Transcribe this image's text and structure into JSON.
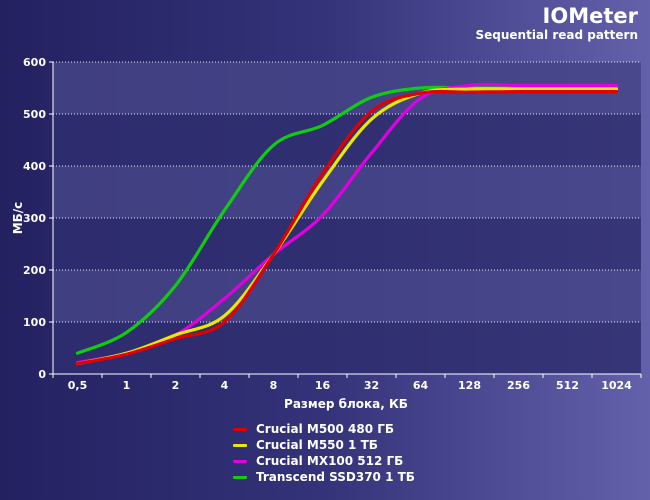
{
  "chart_data": {
    "type": "line",
    "title": "IOMeter",
    "subtitle": "Sequential read pattern",
    "xlabel": "Размер блока, КБ",
    "ylabel": "МБ/с",
    "categories": [
      "0,5",
      "1",
      "2",
      "4",
      "8",
      "16",
      "32",
      "64",
      "128",
      "256",
      "512",
      "1024"
    ],
    "ylim": [
      0,
      600
    ],
    "yticks": [
      "0",
      "100",
      "200",
      "300",
      "400",
      "500",
      "600"
    ],
    "grid": "horizontal dotted",
    "legend_position": "bottom",
    "series": [
      {
        "name": "Crucial M500 480 ГБ",
        "color": "#e00000",
        "values": [
          20,
          38,
          68,
          100,
          230,
          385,
          505,
          540,
          542,
          543,
          543,
          543
        ]
      },
      {
        "name": "Crucial M550 1 ТБ",
        "color": "#e8e800",
        "values": [
          20,
          40,
          75,
          112,
          230,
          370,
          490,
          540,
          548,
          548,
          548,
          548
        ]
      },
      {
        "name": "Crucial MX100 512 ГБ",
        "color": "#e000e0",
        "values": [
          22,
          40,
          75,
          145,
          230,
          305,
          425,
          530,
          555,
          555,
          555,
          555
        ]
      },
      {
        "name": "Transcend SSD370 1 ТБ",
        "color": "#11cc11",
        "values": [
          40,
          80,
          170,
          315,
          440,
          478,
          532,
          550,
          550,
          550,
          550,
          550
        ]
      }
    ]
  }
}
